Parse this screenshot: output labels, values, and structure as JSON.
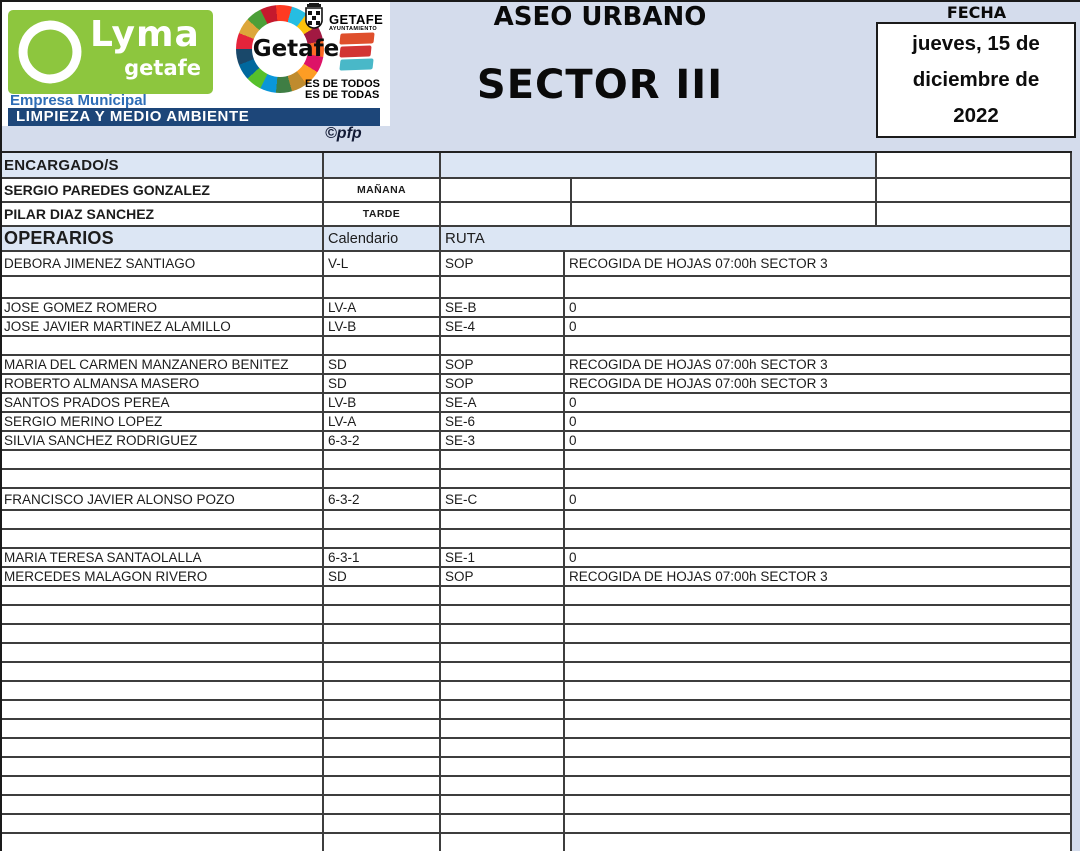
{
  "colors": {
    "band": "#d4dcec",
    "hdrblue": "#dce6f4",
    "line": "#3d3d3d",
    "green": "#8dc63e",
    "navy": "#1d4679",
    "bluetext": "#2e6db6",
    "red1": "#df4f2c",
    "red2": "#d23434",
    "teal": "#49b8c8",
    "credit": "#121a35"
  },
  "sdg_palette": [
    "#E5243B",
    "#DDA63A",
    "#4C9F38",
    "#C5192D",
    "#FF3A21",
    "#26BDE2",
    "#FCC30B",
    "#A21942",
    "#FD6925",
    "#DD1367",
    "#FD9D24",
    "#BF8B2E",
    "#3F7E44",
    "#0A97D9",
    "#56C02B",
    "#00689D",
    "#19486A"
  ],
  "brand": {
    "lyma": "Lyma",
    "lyma_sub": "getafe",
    "empresa": "Empresa Municipal",
    "bar": "LIMPIEZA Y MEDIO AMBIENTE",
    "getafe_circle": "Getafe",
    "crest_title": "GETAFE",
    "crest_sub": "AYUNTAMIENTO",
    "slogan_line1": "ES DE TODOS",
    "slogan_line2": "ES DE TODAS",
    "credit": "©pfp"
  },
  "title": {
    "main": "ASEO URBANO",
    "sector": "SECTOR III"
  },
  "fecha": {
    "label": "FECHA",
    "line1": "jueves, 15 de",
    "line2": "diciembre de",
    "line3": "2022"
  },
  "encargados": {
    "header": "ENCARGADO/S",
    "rows": [
      {
        "name": "SERGIO PAREDES GONZALEZ",
        "turno": "MAÑANA"
      },
      {
        "name": "PILAR DIAZ SANCHEZ",
        "turno": "TARDE"
      }
    ]
  },
  "operarios": {
    "header": "OPERARIOS",
    "col_calendario": "Calendario",
    "col_ruta": "RUTA",
    "rows": [
      {
        "name": "DEBORA JIMENEZ SANTIAGO",
        "calendario": "V-L",
        "ruta": "SOP",
        "tarea": "RECOGIDA DE HOJAS 07:00h SECTOR 3"
      },
      {
        "name": "",
        "calendario": "",
        "ruta": "",
        "tarea": ""
      },
      {
        "name": "JOSE GOMEZ ROMERO",
        "calendario": "LV-A",
        "ruta": "SE-B",
        "tarea": "0"
      },
      {
        "name": "JOSE JAVIER MARTINEZ ALAMILLO",
        "calendario": "LV-B",
        "ruta": "SE-4",
        "tarea": "0"
      },
      {
        "name": "",
        "calendario": "",
        "ruta": "",
        "tarea": ""
      },
      {
        "name": "MARIA DEL CARMEN MANZANERO BENITEZ",
        "calendario": "SD",
        "ruta": "SOP",
        "tarea": "RECOGIDA DE HOJAS 07:00h SECTOR 3"
      },
      {
        "name": "ROBERTO ALMANSA MASERO",
        "calendario": "SD",
        "ruta": "SOP",
        "tarea": "RECOGIDA DE HOJAS 07:00h SECTOR 3"
      },
      {
        "name": "SANTOS PRADOS PEREA",
        "calendario": "LV-B",
        "ruta": "SE-A",
        "tarea": "0"
      },
      {
        "name": "SERGIO MERINO LOPEZ",
        "calendario": "LV-A",
        "ruta": "SE-6",
        "tarea": "0"
      },
      {
        "name": "SILVIA SANCHEZ RODRIGUEZ",
        "calendario": "6-3-2",
        "ruta": "SE-3",
        "tarea": "0"
      },
      {
        "name": "",
        "calendario": "",
        "ruta": "",
        "tarea": ""
      },
      {
        "name": "",
        "calendario": "",
        "ruta": "",
        "tarea": ""
      },
      {
        "name": "FRANCISCO JAVIER ALONSO POZO",
        "calendario": "6-3-2",
        "ruta": "SE-C",
        "tarea": "0"
      },
      {
        "name": "",
        "calendario": "",
        "ruta": "",
        "tarea": ""
      },
      {
        "name": "",
        "calendario": "",
        "ruta": "",
        "tarea": ""
      },
      {
        "name": "MARIA TERESA SANTAOLALLA",
        "calendario": "6-3-1",
        "ruta": "SE-1",
        "tarea": "0"
      },
      {
        "name": "MERCEDES MALAGON RIVERO",
        "calendario": "SD",
        "ruta": "SOP",
        "tarea": "RECOGIDA DE HOJAS 07:00h SECTOR 3"
      }
    ],
    "empty_row_count": 14
  }
}
